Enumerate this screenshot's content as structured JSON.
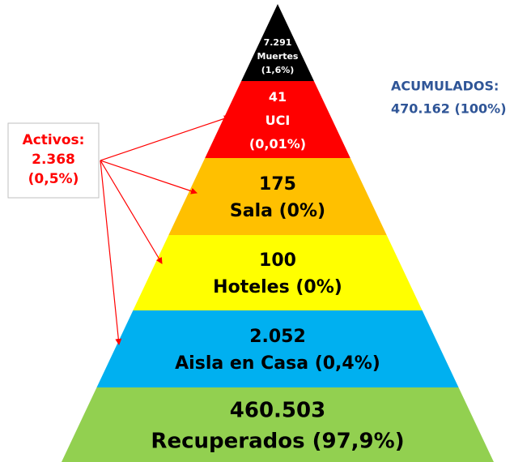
{
  "pyramid": {
    "levels": [
      {
        "lines": [
          "7.291",
          "Muertes",
          "(1,6%)"
        ],
        "color": "#000000",
        "text_color": "#ffffff"
      },
      {
        "lines": [
          "41",
          "UCI",
          "(0,01%)"
        ],
        "color": "#ff0000",
        "text_color": "#ffffff"
      },
      {
        "lines": [
          "175",
          "Sala (0%)"
        ],
        "color": "#ffc000",
        "text_color": "#000000"
      },
      {
        "lines": [
          "100",
          "Hoteles (0%)"
        ],
        "color": "#ffff00",
        "text_color": "#000000"
      },
      {
        "lines": [
          "2.052",
          "Aisla en Casa (0,4%)"
        ],
        "color": "#00b0f0",
        "text_color": "#000000"
      },
      {
        "lines": [
          "460.503",
          "Recuperados (97,9%)"
        ],
        "color": "#92d050",
        "text_color": "#000000"
      }
    ]
  },
  "activos": {
    "lines": [
      "Activos:",
      "2.368",
      "(0,5%)"
    ]
  },
  "acumulados": {
    "lines": [
      "ACUMULADOS:",
      "470.162 (100%)"
    ]
  }
}
